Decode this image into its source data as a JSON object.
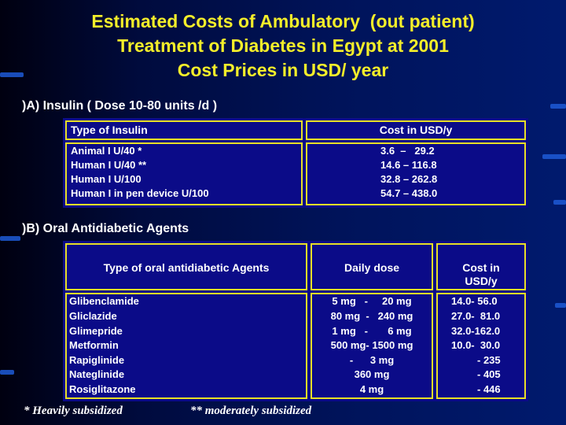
{
  "title_lines": [
    "Estimated Costs of Ambulatory  (out patient)",
    "Treatment of Diabetes in Egypt at 2001",
    "Cost Prices in USD/ year"
  ],
  "section_a": {
    "label": ")A) Insulin ( Dose 10-80 units /d )",
    "headers": {
      "type": "Type of Insulin",
      "cost": "Cost in USD/y"
    },
    "rows": [
      {
        "type": "Animal I U/40 *",
        "cost": "3.6  –   29.2"
      },
      {
        "type": "Human I U/40 **",
        "cost": "14.6 – 116.8"
      },
      {
        "type": "Human I U/100",
        "cost": "32.8 – 262.8"
      },
      {
        "type": "Human I in pen device U/100",
        "cost": "54.7 – 438.0"
      }
    ]
  },
  "section_b": {
    "label": ")B) Oral Antidiabetic Agents",
    "headers": {
      "type": "Type of oral antidiabetic Agents",
      "dose": "Daily dose",
      "cost_line1": "Cost in",
      "cost_line2": "USD/y"
    },
    "rows": [
      {
        "type": "Glibenclamide",
        "dose": "5 mg   -     20 mg",
        "cost": "14.0- 56.0"
      },
      {
        "type": "Gliclazide",
        "dose": "80 mg  -   240 mg",
        "cost": "27.0-  81.0"
      },
      {
        "type": "Glimepride",
        "dose": "1 mg   -       6 mg",
        "cost": "32.0-162.0"
      },
      {
        "type": "Metformin",
        "dose": "500 mg- 1500 mg",
        "cost": "10.0-  30.0"
      },
      {
        "type": "Rapiglinide",
        "dose": "-      3 mg",
        "cost": "- 235"
      },
      {
        "type": "Nateglinide",
        "dose": "360 mg",
        "cost": "- 405"
      },
      {
        "type": "Rosiglitazone",
        "dose": "4 mg",
        "cost": "- 446"
      }
    ]
  },
  "footnotes": {
    "heavily": "* Heavily subsidized",
    "moderately": "** moderately subsidized"
  }
}
